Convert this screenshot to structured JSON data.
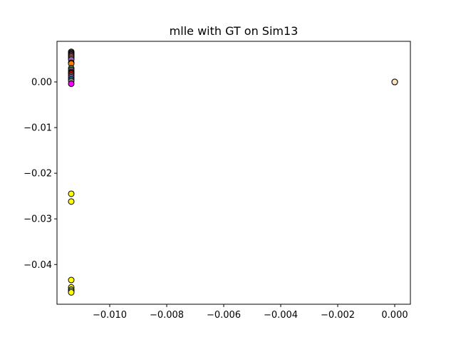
{
  "chart_data": {
    "type": "scatter",
    "title": "mlle with GT on Sim13",
    "xlabel": "",
    "ylabel": "",
    "xlim": [
      -0.01185,
      0.00055
    ],
    "ylim": [
      -0.0487,
      0.0089
    ],
    "x_ticks": [
      {
        "value": -0.01,
        "label": "−0.010"
      },
      {
        "value": -0.008,
        "label": "−0.008"
      },
      {
        "value": -0.006,
        "label": "−0.006"
      },
      {
        "value": -0.004,
        "label": "−0.004"
      },
      {
        "value": -0.002,
        "label": "−0.002"
      },
      {
        "value": 0.0,
        "label": "0.000"
      }
    ],
    "y_ticks": [
      {
        "value": 0.0,
        "label": "0.00"
      },
      {
        "value": -0.01,
        "label": "−0.01"
      },
      {
        "value": -0.02,
        "label": "−0.02"
      },
      {
        "value": -0.03,
        "label": "−0.03"
      },
      {
        "value": -0.04,
        "label": "−0.04"
      }
    ],
    "grid": false,
    "legend": "none",
    "marker_edge_color": "#000000",
    "points": [
      {
        "x": -0.01135,
        "y": 0.0066,
        "color": "#e377c2"
      },
      {
        "x": -0.01135,
        "y": 0.0064,
        "color": "#bcbd22"
      },
      {
        "x": -0.01135,
        "y": 0.0062,
        "color": "#9467bd"
      },
      {
        "x": -0.01135,
        "y": 0.006,
        "color": "#ff7f0e"
      },
      {
        "x": -0.01135,
        "y": 0.0058,
        "color": "#8c564b"
      },
      {
        "x": -0.01135,
        "y": 0.0055,
        "color": "#e377c2"
      },
      {
        "x": -0.01135,
        "y": 0.0052,
        "color": "#ff7f0e"
      },
      {
        "x": -0.01135,
        "y": 0.0049,
        "color": "#9467bd"
      },
      {
        "x": -0.01135,
        "y": 0.0042,
        "color": "#ff7f0e"
      },
      {
        "x": -0.01135,
        "y": 0.004,
        "color": "#ff7f0e"
      },
      {
        "x": -0.01135,
        "y": 0.003,
        "color": "#2ca02c"
      },
      {
        "x": -0.01135,
        "y": 0.0026,
        "color": "#9467bd"
      },
      {
        "x": -0.01135,
        "y": 0.0022,
        "color": "#8c564b"
      },
      {
        "x": -0.01135,
        "y": 0.002,
        "color": "#ff7f0e"
      },
      {
        "x": -0.01135,
        "y": 0.0018,
        "color": "#ff0000"
      },
      {
        "x": -0.01135,
        "y": 0.0014,
        "color": "#8c564b"
      },
      {
        "x": -0.01135,
        "y": 0.001,
        "color": "#9467bd"
      },
      {
        "x": -0.01135,
        "y": 0.0006,
        "color": "#1f77b4"
      },
      {
        "x": -0.01135,
        "y": 0.0002,
        "color": "#7f7f7f"
      },
      {
        "x": -0.01135,
        "y": -0.0004,
        "color": "#ff00ff"
      },
      {
        "x": -0.01135,
        "y": -0.0245,
        "color": "#ffff00"
      },
      {
        "x": -0.01135,
        "y": -0.0262,
        "color": "#ffff00"
      },
      {
        "x": -0.01135,
        "y": -0.0434,
        "color": "#ffff00"
      },
      {
        "x": -0.01135,
        "y": -0.045,
        "color": "#ffff00"
      },
      {
        "x": -0.01135,
        "y": -0.0455,
        "color": "#ffff00"
      },
      {
        "x": -0.01135,
        "y": -0.0458,
        "color": "#ffff00"
      },
      {
        "x": -0.01135,
        "y": -0.0461,
        "color": "#ffff00"
      },
      {
        "x": 0.0,
        "y": 0.0,
        "color": "#7f7f7f"
      },
      {
        "x": 0.0,
        "y": 0.0,
        "color": "#ff7f0e"
      },
      {
        "x": 0.0,
        "y": 0.0,
        "color": "#ffe4c4"
      }
    ]
  }
}
